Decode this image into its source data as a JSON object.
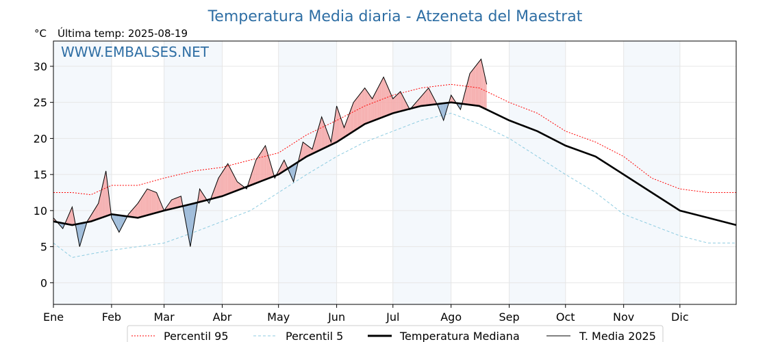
{
  "chart_data": {
    "type": "line",
    "title": "Temperatura Media diaria - Atzeneta del Maestrat",
    "unit_label": "°C",
    "subtitle": "Última temp: 2025-08-19",
    "watermark": "WWW.EMBALSES.NET",
    "ylim": [
      -3,
      33.5
    ],
    "xlim": [
      0,
      364
    ],
    "yticks": [
      0,
      5,
      10,
      15,
      20,
      25,
      30
    ],
    "grid": true,
    "legend_position": "bottom-center",
    "months": [
      {
        "label": "Ene",
        "day": 0
      },
      {
        "label": "Feb",
        "day": 31
      },
      {
        "label": "Mar",
        "day": 59
      },
      {
        "label": "Abr",
        "day": 90
      },
      {
        "label": "May",
        "day": 120
      },
      {
        "label": "Jun",
        "day": 151
      },
      {
        "label": "Jul",
        "day": 181
      },
      {
        "label": "Ago",
        "day": 212
      },
      {
        "label": "Sep",
        "day": 243
      },
      {
        "label": "Oct",
        "day": 273
      },
      {
        "label": "Nov",
        "day": 304
      },
      {
        "label": "Dic",
        "day": 334
      }
    ],
    "series": [
      {
        "name": "Percentil 95",
        "color": "#ff0000",
        "style": "dotted",
        "x": [
          0,
          10,
          20,
          31,
          45,
          59,
          75,
          90,
          105,
          120,
          135,
          151,
          166,
          181,
          196,
          212,
          227,
          243,
          258,
          273,
          289,
          304,
          319,
          334,
          349,
          364
        ],
        "values": [
          12.5,
          12.5,
          12.2,
          13.5,
          13.5,
          14.5,
          15.5,
          16.0,
          17.0,
          18.0,
          20.5,
          22.5,
          24.5,
          26.0,
          27.0,
          27.5,
          27.0,
          25.0,
          23.5,
          21.0,
          19.5,
          17.5,
          14.5,
          13.0,
          12.5,
          12.5
        ]
      },
      {
        "name": "Percentil 5",
        "color": "#8ccbe0",
        "style": "dashed",
        "x": [
          0,
          10,
          20,
          31,
          45,
          59,
          75,
          90,
          105,
          120,
          135,
          151,
          166,
          181,
          196,
          212,
          227,
          243,
          258,
          273,
          289,
          304,
          319,
          334,
          349,
          364
        ],
        "values": [
          5.5,
          3.5,
          4.0,
          4.5,
          5.0,
          5.5,
          7.0,
          8.5,
          10.0,
          12.5,
          15.0,
          17.5,
          19.5,
          21.0,
          22.5,
          23.5,
          22.0,
          20.0,
          17.5,
          15.0,
          12.5,
          9.5,
          8.0,
          6.5,
          5.5,
          5.5
        ]
      },
      {
        "name": "Temperatura Mediana",
        "color": "#000000",
        "style": "thick",
        "x": [
          0,
          10,
          20,
          31,
          45,
          59,
          75,
          90,
          105,
          120,
          135,
          151,
          166,
          181,
          196,
          212,
          227,
          243,
          258,
          273,
          289,
          304,
          319,
          334,
          349,
          364
        ],
        "values": [
          8.5,
          8.0,
          8.5,
          9.5,
          9.0,
          10.0,
          11.0,
          12.0,
          13.5,
          15.0,
          17.5,
          19.5,
          22.0,
          23.5,
          24.5,
          25.0,
          24.5,
          22.5,
          21.0,
          19.0,
          17.5,
          15.0,
          12.5,
          10.0,
          9.0,
          8.0
        ]
      },
      {
        "name": "T. Media 2025",
        "color": "#000000",
        "style": "thin",
        "x": [
          0,
          5,
          10,
          14,
          18,
          24,
          28,
          31,
          35,
          40,
          45,
          50,
          55,
          59,
          63,
          68,
          73,
          78,
          83,
          88,
          93,
          98,
          103,
          108,
          113,
          118,
          123,
          128,
          133,
          138,
          143,
          148,
          151,
          155,
          160,
          166,
          170,
          176,
          181,
          185,
          190,
          195,
          200,
          205,
          208,
          212,
          217,
          222,
          228,
          231
        ],
        "values": [
          9.0,
          7.5,
          10.5,
          5.0,
          8.5,
          11.0,
          15.5,
          9.0,
          7.0,
          9.5,
          11.0,
          13.0,
          12.5,
          10.0,
          11.5,
          12.0,
          5.0,
          13.0,
          11.0,
          14.5,
          16.5,
          14.0,
          13.0,
          17.0,
          19.0,
          14.5,
          17.0,
          14.0,
          19.5,
          18.5,
          23.0,
          19.5,
          24.5,
          21.5,
          25.0,
          27.0,
          25.5,
          28.5,
          25.5,
          26.5,
          24.0,
          25.5,
          27.0,
          24.5,
          22.5,
          26.0,
          24.0,
          29.0,
          31.0,
          27.5
        ]
      }
    ]
  },
  "legend": [
    {
      "label": "Percentil 95"
    },
    {
      "label": "Percentil 5"
    },
    {
      "label": "Temperatura Mediana"
    },
    {
      "label": "T. Media 2025"
    }
  ]
}
